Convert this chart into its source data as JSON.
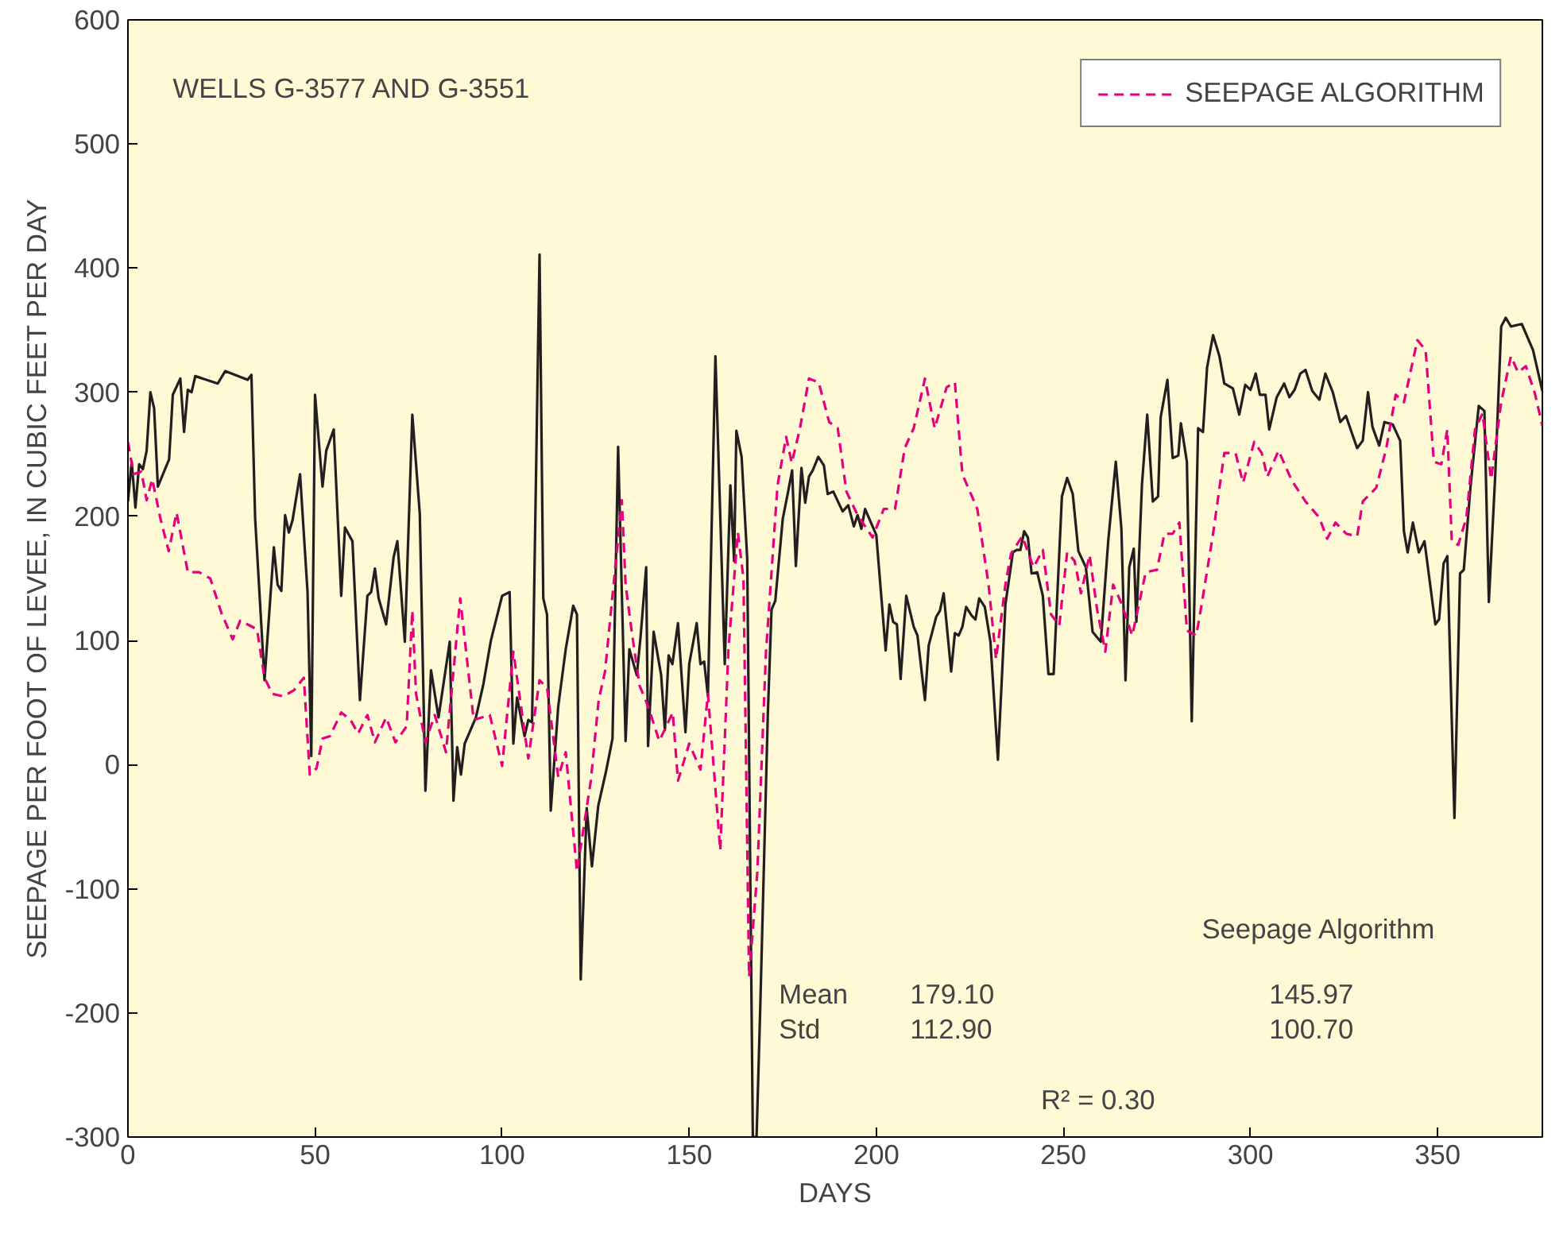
{
  "chart_data": {
    "type": "line",
    "xlabel": "DAYS",
    "ylabel": "SEEPAGE PER FOOT OF LEVEE, IN CUBIC FEET PER DAY",
    "xlim": [
      0,
      378
    ],
    "ylim": [
      -300,
      600
    ],
    "xticks": [
      0,
      50,
      100,
      150,
      200,
      250,
      300,
      350
    ],
    "yticks": [
      -300,
      -200,
      -100,
      0,
      100,
      200,
      300,
      400,
      500,
      600
    ],
    "grid": false,
    "legend": "top right",
    "annotations": [
      "WELLS G-3577 AND G-3551",
      "Seepage Algorithm",
      "Mean",
      "179.10",
      "145.97",
      "Std",
      "112.90",
      "100.70",
      "R² = 0.30"
    ],
    "series": [
      {
        "color": "#231f20",
        "line_style": "solid",
        "x": [
          0,
          1,
          2,
          3,
          4,
          5,
          6,
          7,
          8,
          11,
          12,
          14,
          15,
          16,
          17,
          18,
          24,
          26,
          32,
          33,
          34,
          36.5,
          39,
          40,
          41,
          42,
          43,
          44,
          46,
          48,
          49,
          50,
          52,
          53,
          55,
          57,
          58,
          60,
          62,
          64,
          65,
          66,
          67,
          69,
          71,
          72,
          74,
          76,
          78,
          79.5,
          81,
          83,
          86,
          87,
          88,
          89,
          90,
          93,
          95,
          97,
          100,
          102,
          103,
          104,
          106,
          107,
          108,
          110,
          111,
          112,
          113,
          115,
          117,
          119,
          120,
          121,
          122.6,
          124,
          125.7,
          127.8,
          129.5,
          131,
          133,
          134,
          136,
          137,
          138.5,
          139,
          140.5,
          142.5,
          143.5,
          144.5,
          145.5,
          147,
          149,
          150,
          152,
          153,
          154,
          155,
          157,
          159.5,
          161,
          162,
          162.6,
          164,
          165.5,
          167,
          168,
          169,
          171,
          172,
          173,
          175,
          176.5,
          177.5,
          178.5,
          180,
          181,
          182,
          183,
          184.5,
          186,
          187,
          188.5,
          191,
          192.5,
          194,
          195,
          196,
          197,
          200,
          202.5,
          203.5,
          204.5,
          205.5,
          206.5,
          208,
          210,
          211,
          213,
          214,
          216,
          217,
          218,
          220,
          221,
          222,
          223,
          224,
          225.5,
          226.5,
          227.5,
          229,
          230.5,
          232.5,
          234.5,
          236.5,
          237.5,
          238.5,
          239.5,
          240.5,
          241.5,
          243,
          244.5,
          246,
          247.4,
          249.6,
          251,
          252.5,
          254,
          256,
          257.8,
          260,
          262,
          264,
          265.5,
          266.6,
          267.6,
          268.8,
          269.5,
          271,
          272.4,
          273.9,
          275.3,
          276,
          277.8,
          279.2,
          280.7,
          281.4,
          283,
          284.3,
          286,
          287.3,
          288.4,
          290,
          291.7,
          293,
          295.3,
          297,
          298.6,
          300,
          301.4,
          302.5,
          304,
          305,
          307,
          309,
          310.4,
          311.8,
          313.3,
          314.7,
          316.5,
          318.4,
          320,
          322,
          324,
          325.5,
          327,
          328.5,
          330,
          331.4,
          332.6,
          334.4,
          335.8,
          338,
          340,
          341,
          342,
          343.4,
          345,
          346.5,
          349.4,
          350.4,
          351.6,
          352.6,
          354.5,
          356,
          357,
          358.8,
          361,
          362.5,
          363.7,
          365.4,
          367,
          368.2,
          369.6,
          372.5,
          375.5,
          378
        ],
        "values": [
          212,
          244,
          207,
          242,
          238,
          253,
          300,
          287,
          224,
          246,
          298,
          311,
          268,
          302,
          300,
          313,
          307,
          317,
          310,
          314,
          198,
          68,
          175,
          145,
          140,
          201,
          187,
          197,
          234,
          139,
          7,
          298,
          224,
          253,
          270,
          136,
          191,
          180,
          52,
          136,
          139,
          158,
          134,
          113,
          167,
          180,
          99,
          282,
          202,
          -21,
          76,
          38,
          99,
          -29,
          14,
          -8,
          17,
          38,
          65,
          100,
          136,
          139,
          17,
          54,
          23,
          36,
          34,
          411,
          134,
          121,
          -37,
          47,
          93,
          128,
          121,
          -173,
          -35,
          -82,
          -33,
          -5,
          21,
          256,
          19,
          93,
          72,
          103,
          159,
          15,
          107,
          72,
          28,
          88,
          81,
          114,
          26,
          81,
          114,
          81,
          83,
          55,
          329,
          81,
          225,
          164,
          269,
          248,
          166,
          -300,
          -300,
          -194,
          40,
          125,
          132,
          198,
          221,
          237,
          160,
          239,
          211,
          232,
          237,
          248,
          241,
          218,
          220,
          204,
          209,
          192,
          201,
          190,
          206,
          185,
          92,
          129,
          115,
          113,
          69,
          136,
          111,
          104,
          52,
          96,
          119,
          124,
          138,
          75,
          106,
          104,
          111,
          127,
          120,
          117,
          134,
          127,
          99,
          4,
          129,
          171,
          173,
          173,
          188,
          183,
          154,
          155,
          136,
          73,
          73,
          216,
          231,
          218,
          172,
          159,
          107,
          99,
          181,
          244,
          190,
          68,
          159,
          174,
          115,
          226,
          282,
          212,
          216,
          280,
          310,
          247,
          249,
          275,
          244,
          35,
          271,
          268,
          320,
          346,
          329,
          307,
          303,
          282,
          306,
          302,
          315,
          298,
          298,
          270,
          296,
          307,
          296,
          302,
          315,
          318,
          301,
          294,
          315,
          300,
          276,
          281,
          268,
          255,
          261,
          300,
          272,
          257,
          276,
          274,
          261,
          188,
          171,
          195,
          171,
          180,
          113,
          117,
          162,
          168,
          -43,
          154,
          157,
          224,
          289,
          285,
          131,
          233,
          353,
          360,
          353,
          355,
          334,
          301
        ]
      },
      {
        "name": "SEEPAGE ALGORITHM",
        "color": "#e6007e",
        "line_style": "dashed",
        "x": [
          0,
          1.5,
          3.6,
          5,
          6.5,
          8.7,
          10.9,
          13,
          16,
          19,
          22,
          25,
          28,
          30,
          34.5,
          36.5,
          38.6,
          41.5,
          44.4,
          47,
          48.6,
          50.4,
          52,
          54,
          57,
          59.5,
          61.5,
          64,
          66,
          69,
          71.5,
          74.5,
          76,
          77,
          79.5,
          82,
          85,
          88.8,
          92.4,
          96.7,
          100,
          103,
          107,
          110,
          112,
          115,
          117,
          120,
          123.7,
          125.8,
          127.5,
          132,
          133,
          134.6,
          136.7,
          139,
          142,
          145.6,
          147,
          150,
          153,
          155,
          158.3,
          160.5,
          163,
          164.5,
          166,
          168.2,
          170.5,
          173.6,
          175.9,
          177.4,
          179.6,
          182,
          184.6,
          187.4,
          189.7,
          192,
          195,
          199,
          202,
          205,
          207.6,
          210,
          213,
          215.6,
          218.8,
          221,
          223,
          227,
          230,
          232,
          234.5,
          236,
          239,
          242,
          244.5,
          246.7,
          248.9,
          251,
          253,
          254.7,
          257,
          259,
          261.2,
          263.3,
          265.5,
          268.4,
          272,
          275,
          277,
          279.2,
          281,
          283,
          285.5,
          287,
          290,
          293,
          296,
          298,
          301,
          303,
          304.5,
          307.5,
          311,
          314.7,
          318.4,
          320.5,
          322.7,
          325.6,
          328.5,
          330,
          333.6,
          336.3,
          338.8,
          341,
          344.6,
          346.8,
          349,
          351,
          352.6,
          353.8,
          355.5,
          357.7,
          360,
          362,
          364.3,
          367,
          369.6,
          371.5,
          373.6,
          376,
          378
        ],
        "values": [
          260,
          234,
          236,
          213,
          230,
          198,
          172,
          203,
          155,
          155,
          150,
          122,
          101,
          116,
          109,
          70,
          57,
          55,
          60,
          70,
          -8,
          -3,
          21,
          23,
          42,
          36,
          25,
          40,
          18,
          38,
          18,
          31,
          124,
          57,
          18,
          40,
          10,
          134,
          36,
          40,
          -1,
          91,
          5,
          68,
          62,
          -10,
          10,
          -86,
          -13,
          52,
          75,
          213,
          145,
          108,
          64,
          47,
          19,
          42,
          -13,
          17,
          -4,
          57,
          -69,
          94,
          187,
          150,
          -171,
          -87,
          90,
          225,
          264,
          243,
          271,
          311,
          308,
          276,
          271,
          220,
          201,
          183,
          206,
          206,
          255,
          271,
          311,
          271,
          304,
          308,
          234,
          206,
          145,
          85,
          145,
          170,
          184,
          159,
          173,
          121,
          112,
          171,
          164,
          138,
          169,
          125,
          91,
          145,
          130,
          104,
          155,
          157,
          186,
          186,
          195,
          108,
          104,
          130,
          186,
          251,
          251,
          227,
          260,
          251,
          232,
          253,
          229,
          212,
          199,
          182,
          195,
          186,
          184,
          212,
          223,
          255,
          298,
          292,
          342,
          334,
          244,
          242,
          270,
          180,
          177,
          199,
          270,
          283,
          230,
          292,
          329,
          316,
          321,
          299,
          273
        ]
      }
    ]
  }
}
